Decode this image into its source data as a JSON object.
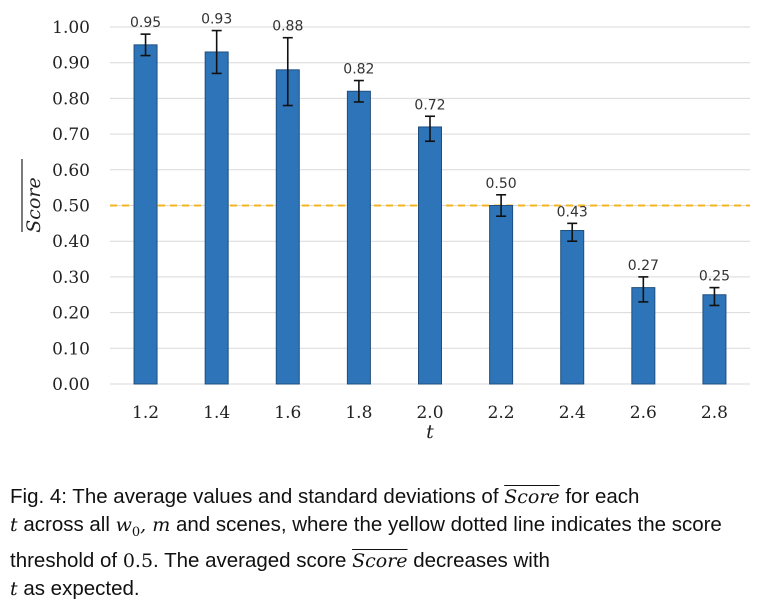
{
  "chart_data": {
    "type": "bar",
    "categories": [
      "1.2",
      "1.4",
      "1.6",
      "1.8",
      "2.0",
      "2.2",
      "2.4",
      "2.6",
      "2.8"
    ],
    "values": [
      0.95,
      0.93,
      0.88,
      0.82,
      0.72,
      0.5,
      0.43,
      0.27,
      0.25
    ],
    "data_labels": [
      "0.95",
      "0.93",
      "0.88",
      "0.82",
      "0.72",
      "0.50",
      "0.43",
      "0.27",
      "0.25"
    ],
    "error_low": [
      0.92,
      0.87,
      0.78,
      0.79,
      0.68,
      0.47,
      0.4,
      0.23,
      0.22
    ],
    "error_high": [
      0.98,
      0.99,
      0.97,
      0.85,
      0.75,
      0.53,
      0.45,
      0.3,
      0.27
    ],
    "ylim": [
      0.0,
      1.0
    ],
    "yticks": [
      "0.00",
      "0.10",
      "0.20",
      "0.30",
      "0.40",
      "0.50",
      "0.60",
      "0.70",
      "0.80",
      "0.90",
      "1.00"
    ],
    "xlabel": "t",
    "ylabel": "Score",
    "threshold": 0.5,
    "grid": true,
    "colors": {
      "bar": "#2e74b8",
      "bar_edge": "#1f4f80",
      "threshold": "#f2b526",
      "grid": "#d9d9d9",
      "error": "#111111"
    }
  },
  "caption": {
    "p1": "Fig. 4: The average values and standard deviations of ",
    "m1": "Score",
    "p2": " for each",
    "m2": "t",
    "p3": " across all ",
    "m3": "w",
    "m3sub": "0",
    "m4": ", m",
    "p4": " and scenes, where the yellow dotted line indicates the score threshold of ",
    "m5": "0.5",
    "p5": ". The averaged score ",
    "m6": "Score",
    "p6": " decreases with",
    "m7": "t",
    "p7": " as expected."
  }
}
